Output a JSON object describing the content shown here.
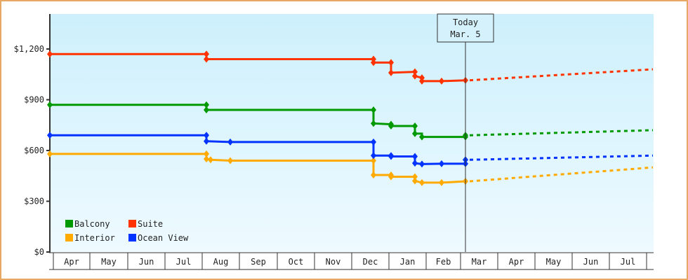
{
  "chart_data": {
    "type": "line",
    "title": "",
    "xlabel": "",
    "ylabel": "",
    "ylim": [
      0,
      1350
    ],
    "yticks": [
      "$0",
      "$300",
      "$600",
      "$900",
      "$1,200"
    ],
    "ytick_values": [
      0,
      300,
      600,
      900,
      1200
    ],
    "x_categories": [
      "Apr",
      "May",
      "Jun",
      "Jul",
      "Aug",
      "Sep",
      "Oct",
      "Nov",
      "Dec",
      "Jan",
      "Feb",
      "Mar",
      "Apr",
      "May",
      "Jun",
      "Jul"
    ],
    "grid": false,
    "legend_position": "bottom-left inside",
    "annotation": {
      "line1": "Today",
      "line2": "Mar. 5"
    },
    "series": [
      {
        "name": "Balcony",
        "color": "#009900",
        "points": [
          [
            "Apr start",
            870
          ],
          [
            "Aug start",
            870
          ],
          [
            "Aug start",
            840
          ],
          [
            "Dec mid",
            840
          ],
          [
            "Dec mid",
            760
          ],
          [
            "Jan early",
            755
          ],
          [
            "Jan early",
            745
          ],
          [
            "Jan mid",
            745
          ],
          [
            "Jan mid",
            700
          ],
          [
            "Jan late",
            680
          ],
          [
            "Mar 5",
            680
          ],
          [
            "Mar 5",
            690
          ]
        ],
        "forecast": [
          [
            "Mar 5",
            690
          ],
          [
            "Jul end",
            720
          ]
        ]
      },
      {
        "name": "Suite",
        "color": "#ff3300",
        "points": [
          [
            "Apr start",
            1170
          ],
          [
            "Aug start",
            1170
          ],
          [
            "Aug start",
            1140
          ],
          [
            "Dec mid",
            1140
          ],
          [
            "Dec mid",
            1120
          ],
          [
            "Jan early",
            1120
          ],
          [
            "Jan early",
            1060
          ],
          [
            "Jan mid",
            1065
          ],
          [
            "Jan mid",
            1040
          ],
          [
            "Jan late",
            1030
          ],
          [
            "Jan late",
            1010
          ],
          [
            "Feb mid",
            1010
          ],
          [
            "Mar 5",
            1015
          ]
        ],
        "forecast": [
          [
            "Mar 5",
            1015
          ],
          [
            "Jul end",
            1080
          ]
        ]
      },
      {
        "name": "Interior",
        "color": "#ffaa00",
        "points": [
          [
            "Apr start",
            580
          ],
          [
            "Aug start",
            580
          ],
          [
            "Aug start",
            550
          ],
          [
            "Aug early",
            545
          ],
          [
            "Aug mid",
            540
          ],
          [
            "Dec mid",
            540
          ],
          [
            "Dec mid",
            455
          ],
          [
            "Jan early",
            455
          ],
          [
            "Jan early",
            445
          ],
          [
            "Jan mid",
            445
          ],
          [
            "Jan mid",
            420
          ],
          [
            "Jan late",
            410
          ],
          [
            "Feb mid",
            410
          ],
          [
            "Mar 5",
            418
          ]
        ],
        "forecast": [
          [
            "Mar 5",
            418
          ],
          [
            "Jul end",
            500
          ]
        ]
      },
      {
        "name": "Ocean View",
        "color": "#0033ff",
        "points": [
          [
            "Apr start",
            690
          ],
          [
            "Aug start",
            690
          ],
          [
            "Aug start",
            655
          ],
          [
            "Aug mid",
            650
          ],
          [
            "Dec mid",
            650
          ],
          [
            "Dec mid",
            570
          ],
          [
            "Jan early",
            570
          ],
          [
            "Jan early",
            565
          ],
          [
            "Jan mid",
            565
          ],
          [
            "Jan mid",
            525
          ],
          [
            "Jan late",
            520
          ],
          [
            "Feb mid",
            522
          ],
          [
            "Mar 5",
            522
          ],
          [
            "Mar 5",
            545
          ]
        ],
        "forecast": [
          [
            "Mar 5",
            545
          ],
          [
            "Jul end",
            570
          ]
        ]
      }
    ]
  },
  "colors": {
    "frame": "#e8a865",
    "plot_top": "#cdf0fc",
    "plot_bottom": "#eefaff",
    "axis": "#333333"
  }
}
